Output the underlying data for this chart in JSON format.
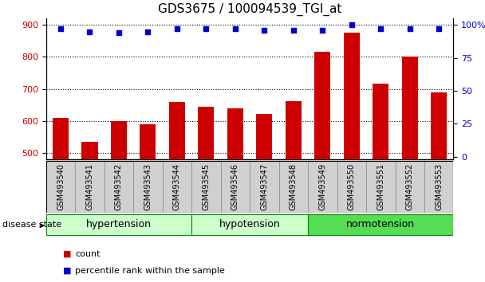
{
  "title": "GDS3675 / 100094539_TGI_at",
  "samples": [
    "GSM493540",
    "GSM493541",
    "GSM493542",
    "GSM493543",
    "GSM493544",
    "GSM493545",
    "GSM493546",
    "GSM493547",
    "GSM493548",
    "GSM493549",
    "GSM493550",
    "GSM493551",
    "GSM493552",
    "GSM493553"
  ],
  "bar_values": [
    610,
    535,
    600,
    590,
    660,
    645,
    638,
    622,
    662,
    815,
    875,
    715,
    800,
    690
  ],
  "percentile_values": [
    97,
    95,
    94,
    95,
    97,
    97,
    97,
    96,
    96,
    96,
    100,
    97,
    97,
    97
  ],
  "bar_color": "#cc0000",
  "dot_color": "#0000cc",
  "ylim_left": [
    480,
    920
  ],
  "ylim_right": [
    -2,
    105
  ],
  "yticks_left": [
    500,
    600,
    700,
    800,
    900
  ],
  "yticks_right": [
    0,
    25,
    50,
    75,
    100
  ],
  "ytick_labels_right": [
    "0",
    "25",
    "50",
    "75",
    "100%"
  ],
  "groups": [
    {
      "label": "hypertension",
      "start": 0,
      "end": 5,
      "color": "#ccffcc"
    },
    {
      "label": "hypotension",
      "start": 5,
      "end": 9,
      "color": "#ccffcc"
    },
    {
      "label": "normotension",
      "start": 9,
      "end": 14,
      "color": "#55dd55"
    }
  ],
  "disease_state_label": "disease state",
  "legend_count": "count",
  "legend_percentile": "percentile rank within the sample",
  "bar_color_legend": "#cc0000",
  "dot_color_legend": "#0000cc",
  "tick_label_color_left": "#cc0000",
  "tick_label_color_right": "#0000cc",
  "bar_width": 0.55,
  "title_fontsize": 11,
  "axis_tick_fontsize": 8,
  "sample_fontsize": 7,
  "group_fontsize": 9,
  "legend_fontsize": 8,
  "sample_box_color": "#d0d0d0",
  "sample_box_edge": "#888888",
  "group_edge_color": "#008800"
}
